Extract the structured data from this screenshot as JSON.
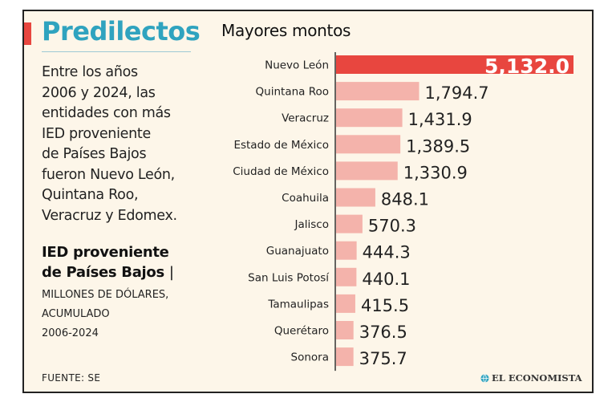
{
  "header": {
    "title": "Predilectos",
    "intro_lines": [
      "Entre los años",
      "2006 y 2024, las",
      "entidades con más",
      "IED proveniente",
      "de Países Bajos",
      "fueron Nuevo León,",
      "Quintana Roo,",
      "Veracruz y Edomex."
    ],
    "series_title_lines": [
      "IED proveniente",
      "de Países Bajos"
    ],
    "series_title_separator": "|",
    "unit_lines": [
      "MILLONES DE DÓLARES,",
      "ACUMULADO",
      "2006-2024"
    ]
  },
  "footer": {
    "source": "FUENTE: SE",
    "brand": "EL ECONOMISTA",
    "brand_icon": "globe-icon"
  },
  "colors": {
    "background": "#fdf6e9",
    "title": "#2fa3bf",
    "accent": "#e8463f",
    "highlight_bar": "#e8463f",
    "bar": "#f4b3ab",
    "text": "#222222"
  },
  "chart_data": {
    "type": "bar",
    "orientation": "horizontal",
    "title": "Mayores montos",
    "xlabel": "",
    "ylabel": "",
    "xlim": [
      0,
      5132
    ],
    "categories": [
      "Nuevo León",
      "Quintana Roo",
      "Veracruz",
      "Estado de México",
      "Ciudad de México",
      "Coahuila",
      "Jalisco",
      "Guanajuato",
      "San Luis Potosí",
      "Tamaulipas",
      "Querétaro",
      "Sonora"
    ],
    "values": [
      5132.0,
      1794.7,
      1431.9,
      1389.5,
      1330.9,
      848.1,
      570.3,
      444.3,
      440.1,
      415.5,
      376.5,
      375.7
    ],
    "value_labels": [
      "5,132.0",
      "1,794.7",
      "1,431.9",
      "1,389.5",
      "1,330.9",
      "848.1",
      "570.3",
      "444.3",
      "440.1",
      "415.5",
      "376.5",
      "375.7"
    ],
    "highlight_index": 0,
    "legend": "none",
    "grid": false
  }
}
